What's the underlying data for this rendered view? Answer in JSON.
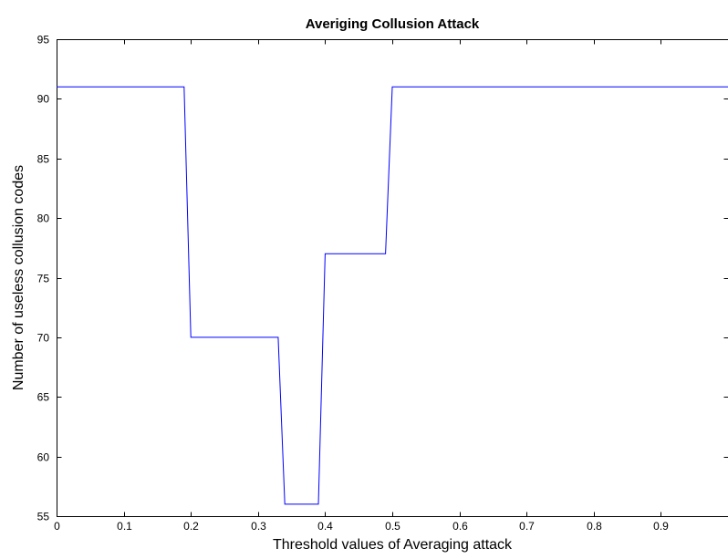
{
  "chart_data": {
    "type": "line",
    "title": "Averiging Collusion Attack",
    "xlabel": "Threshold values of Averaging attack",
    "ylabel": "Number of useless collusion codes",
    "xlim": [
      0,
      1
    ],
    "ylim": [
      55,
      95
    ],
    "xticks": [
      "0",
      "0.1",
      "0.2",
      "0.3",
      "0.4",
      "0.5",
      "0.6",
      "0.7",
      "0.8",
      "0.9"
    ],
    "xtick_values": [
      0,
      0.1,
      0.2,
      0.3,
      0.4,
      0.5,
      0.6,
      0.7,
      0.8,
      0.9
    ],
    "yticks": [
      "55",
      "60",
      "65",
      "70",
      "75",
      "80",
      "85",
      "90",
      "95"
    ],
    "ytick_values": [
      55,
      60,
      65,
      70,
      75,
      80,
      85,
      90,
      95
    ],
    "grid": false,
    "line_color": "#0000ff",
    "series": [
      {
        "x": [
          0,
          0.19,
          0.2,
          0.33,
          0.34,
          0.39,
          0.4,
          0.49,
          0.5,
          1.0
        ],
        "y": [
          91,
          91,
          70,
          70,
          56,
          56,
          77,
          77,
          91,
          91
        ]
      }
    ]
  }
}
